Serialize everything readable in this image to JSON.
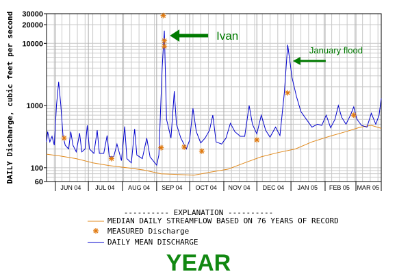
{
  "chart_data": {
    "type": "line",
    "yscale": "log",
    "ylim": [
      60,
      30000
    ],
    "xlim": [
      "2004-05-24",
      "2005-03-24"
    ],
    "ylabel": "DAILY Discharge, cubic feet per second",
    "yticks": [
      {
        "value": 60,
        "label": "60"
      },
      {
        "value": 100,
        "label": "100"
      },
      {
        "value": 1000,
        "label": "1000"
      },
      {
        "value": 10000,
        "label": "10000"
      },
      {
        "value": 20000,
        "label": "20000"
      },
      {
        "value": 30000,
        "label": "30000"
      }
    ],
    "x_months": [
      {
        "label": "JUN 04",
        "start": "2004-06-01",
        "mid": "2004-06-15"
      },
      {
        "label": "JUL 04",
        "start": "2004-07-01",
        "mid": "2004-07-16"
      },
      {
        "label": "AUG 04",
        "start": "2004-08-01",
        "mid": "2004-08-16"
      },
      {
        "label": "SEP 04",
        "start": "2004-09-01",
        "mid": "2004-09-15"
      },
      {
        "label": "OCT 04",
        "start": "2004-10-01",
        "mid": "2004-10-16"
      },
      {
        "label": "NOV 04",
        "start": "2004-11-01",
        "mid": "2004-11-15"
      },
      {
        "label": "DEC 04",
        "start": "2004-12-01",
        "mid": "2004-12-16"
      },
      {
        "label": "JAN 05",
        "start": "2005-01-01",
        "mid": "2005-01-16"
      },
      {
        "label": "FEB 05",
        "start": "2005-02-01",
        "mid": "2005-02-14"
      },
      {
        "label": "MAR 05",
        "start": "2005-03-01",
        "mid": "2005-03-12"
      }
    ],
    "series": [
      {
        "name": "MEDIAN DAILY STREAMFLOW BASED ON 76 YEARS OF RECORD",
        "color": "#e08a1e",
        "style": "line",
        "points": [
          [
            "2004-05-24",
            165
          ],
          [
            "2004-06-05",
            155
          ],
          [
            "2004-06-20",
            140
          ],
          [
            "2004-07-05",
            120
          ],
          [
            "2004-07-20",
            108
          ],
          [
            "2004-08-05",
            100
          ],
          [
            "2004-08-20",
            92
          ],
          [
            "2004-09-05",
            80
          ],
          [
            "2004-09-20",
            78
          ],
          [
            "2004-10-05",
            76
          ],
          [
            "2004-10-20",
            85
          ],
          [
            "2004-11-05",
            95
          ],
          [
            "2004-11-20",
            120
          ],
          [
            "2004-12-05",
            150
          ],
          [
            "2004-12-20",
            175
          ],
          [
            "2005-01-05",
            200
          ],
          [
            "2005-01-20",
            260
          ],
          [
            "2005-02-05",
            320
          ],
          [
            "2005-02-20",
            380
          ],
          [
            "2005-03-05",
            450
          ],
          [
            "2005-03-15",
            480
          ],
          [
            "2005-03-24",
            430
          ]
        ]
      },
      {
        "name": "MEASURED Discharge",
        "color": "#e07a10",
        "style": "marker",
        "points": [
          [
            "2004-06-09",
            300
          ],
          [
            "2004-07-22",
            140
          ],
          [
            "2004-09-05",
            210
          ],
          [
            "2004-09-07",
            28000
          ],
          [
            "2004-09-08",
            11000
          ],
          [
            "2004-09-08",
            9000
          ],
          [
            "2004-09-26",
            215
          ],
          [
            "2004-10-12",
            185
          ],
          [
            "2004-12-01",
            280
          ],
          [
            "2004-12-29",
            1600
          ],
          [
            "2005-02-27",
            700
          ]
        ]
      },
      {
        "name": "DAILY MEAN DISCHARGE",
        "color": "#0000cc",
        "style": "line",
        "points": [
          [
            "2004-05-24",
            260
          ],
          [
            "2004-05-25",
            380
          ],
          [
            "2004-05-27",
            260
          ],
          [
            "2004-05-29",
            320
          ],
          [
            "2004-05-31",
            230
          ],
          [
            "2004-06-02",
            1000
          ],
          [
            "2004-06-04",
            2400
          ],
          [
            "2004-06-06",
            1000
          ],
          [
            "2004-06-08",
            320
          ],
          [
            "2004-06-10",
            230
          ],
          [
            "2004-06-13",
            200
          ],
          [
            "2004-06-15",
            380
          ],
          [
            "2004-06-17",
            230
          ],
          [
            "2004-06-20",
            180
          ],
          [
            "2004-06-23",
            360
          ],
          [
            "2004-06-25",
            180
          ],
          [
            "2004-06-28",
            200
          ],
          [
            "2004-06-30",
            480
          ],
          [
            "2004-07-02",
            200
          ],
          [
            "2004-07-06",
            170
          ],
          [
            "2004-07-09",
            400
          ],
          [
            "2004-07-11",
            170
          ],
          [
            "2004-07-15",
            170
          ],
          [
            "2004-07-18",
            330
          ],
          [
            "2004-07-20",
            150
          ],
          [
            "2004-07-24",
            150
          ],
          [
            "2004-07-27",
            240
          ],
          [
            "2004-07-31",
            130
          ],
          [
            "2004-08-03",
            460
          ],
          [
            "2004-08-05",
            140
          ],
          [
            "2004-08-09",
            120
          ],
          [
            "2004-08-12",
            420
          ],
          [
            "2004-08-14",
            160
          ],
          [
            "2004-08-19",
            140
          ],
          [
            "2004-08-23",
            300
          ],
          [
            "2004-08-26",
            150
          ],
          [
            "2004-09-01",
            110
          ],
          [
            "2004-09-03",
            160
          ],
          [
            "2004-09-06",
            4000
          ],
          [
            "2004-09-08",
            16000
          ],
          [
            "2004-09-10",
            600
          ],
          [
            "2004-09-14",
            300
          ],
          [
            "2004-09-17",
            1700
          ],
          [
            "2004-09-19",
            500
          ],
          [
            "2004-09-23",
            300
          ],
          [
            "2004-09-28",
            200
          ],
          [
            "2004-10-01",
            280
          ],
          [
            "2004-10-04",
            900
          ],
          [
            "2004-10-07",
            380
          ],
          [
            "2004-10-11",
            250
          ],
          [
            "2004-10-15",
            300
          ],
          [
            "2004-10-19",
            400
          ],
          [
            "2004-10-22",
            700
          ],
          [
            "2004-10-25",
            260
          ],
          [
            "2004-10-30",
            240
          ],
          [
            "2004-11-03",
            300
          ],
          [
            "2004-11-07",
            520
          ],
          [
            "2004-11-11",
            380
          ],
          [
            "2004-11-16",
            320
          ],
          [
            "2004-11-20",
            320
          ],
          [
            "2004-11-24",
            1000
          ],
          [
            "2004-11-27",
            500
          ],
          [
            "2004-12-01",
            350
          ],
          [
            "2004-12-05",
            700
          ],
          [
            "2004-12-09",
            400
          ],
          [
            "2004-12-13",
            310
          ],
          [
            "2004-12-18",
            450
          ],
          [
            "2004-12-22",
            330
          ],
          [
            "2004-12-26",
            1600
          ],
          [
            "2004-12-29",
            9500
          ],
          [
            "2005-01-02",
            2800
          ],
          [
            "2005-01-06",
            1400
          ],
          [
            "2005-01-10",
            800
          ],
          [
            "2005-01-15",
            600
          ],
          [
            "2005-01-20",
            450
          ],
          [
            "2005-01-25",
            500
          ],
          [
            "2005-01-29",
            480
          ],
          [
            "2005-02-02",
            700
          ],
          [
            "2005-02-06",
            440
          ],
          [
            "2005-02-10",
            600
          ],
          [
            "2005-02-13",
            1000
          ],
          [
            "2005-02-16",
            650
          ],
          [
            "2005-02-20",
            500
          ],
          [
            "2005-02-24",
            700
          ],
          [
            "2005-02-27",
            950
          ],
          [
            "2005-03-02",
            600
          ],
          [
            "2005-03-06",
            480
          ],
          [
            "2005-03-11",
            450
          ],
          [
            "2005-03-15",
            750
          ],
          [
            "2005-03-19",
            500
          ],
          [
            "2005-03-22",
            700
          ],
          [
            "2005-03-24",
            1300
          ]
        ]
      }
    ],
    "annotations": [
      {
        "text": "Ivan",
        "color": "#007a00",
        "points_to": [
          "2004-09-08",
          16000
        ]
      },
      {
        "text": "January flood",
        "color": "#007a00",
        "points_to": [
          "2004-12-30",
          7000
        ]
      }
    ],
    "legend": {
      "title": "----------  EXPLANATION  ----------",
      "placement": "bottom"
    },
    "caption": "YEAR",
    "colors": {
      "grid": "#c8c8c8",
      "annotation": "#007a00",
      "caption": "#118811"
    }
  }
}
